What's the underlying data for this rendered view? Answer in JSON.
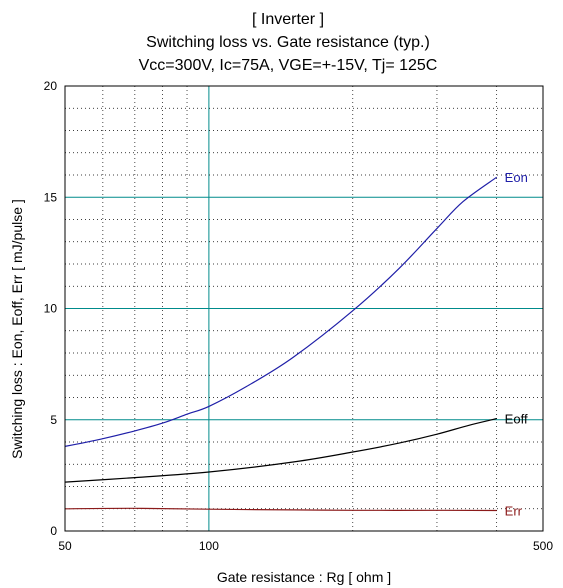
{
  "chart_data": {
    "type": "line",
    "title_lines": [
      "[ Inverter ]",
      "Switching loss  vs.  Gate resistance (typ.)",
      "Vcc=300V, Ic=75A, VGE=+-15V, Tj= 125C"
    ],
    "xlabel": "Gate resistance  :  Rg  [ ohm ]",
    "ylabel": "Switching loss  :  Eon, Eoff, Err  [ mJ/pulse ]",
    "x_scale": "log",
    "xlim": [
      50,
      500
    ],
    "ylim": [
      0,
      20
    ],
    "x_tick_labels": [
      "50",
      "100",
      "500"
    ],
    "y_tick_labels": [
      "0",
      "5",
      "10",
      "15",
      "20"
    ],
    "grid": true,
    "colors": {
      "Eon": "#1f1fa8",
      "Eoff": "#000000",
      "Err": "#8b1a1a",
      "grid": "#008b8b"
    },
    "series": [
      {
        "name": "Eon",
        "x": [
          50,
          60,
          70,
          80,
          90,
          100,
          120,
          150,
          200,
          250,
          300,
          340,
          400
        ],
        "y": [
          3.8,
          4.15,
          4.5,
          4.85,
          5.25,
          5.6,
          6.5,
          7.8,
          9.9,
          11.8,
          13.6,
          14.8,
          15.9
        ]
      },
      {
        "name": "Eoff",
        "x": [
          50,
          70,
          100,
          150,
          200,
          250,
          300,
          350,
          400
        ],
        "y": [
          2.2,
          2.4,
          2.65,
          3.1,
          3.55,
          3.95,
          4.35,
          4.75,
          5.05
        ]
      },
      {
        "name": "Err",
        "x": [
          50,
          70,
          100,
          150,
          200,
          300,
          400
        ],
        "y": [
          1.0,
          1.02,
          0.98,
          0.95,
          0.93,
          0.93,
          0.92
        ]
      }
    ]
  }
}
